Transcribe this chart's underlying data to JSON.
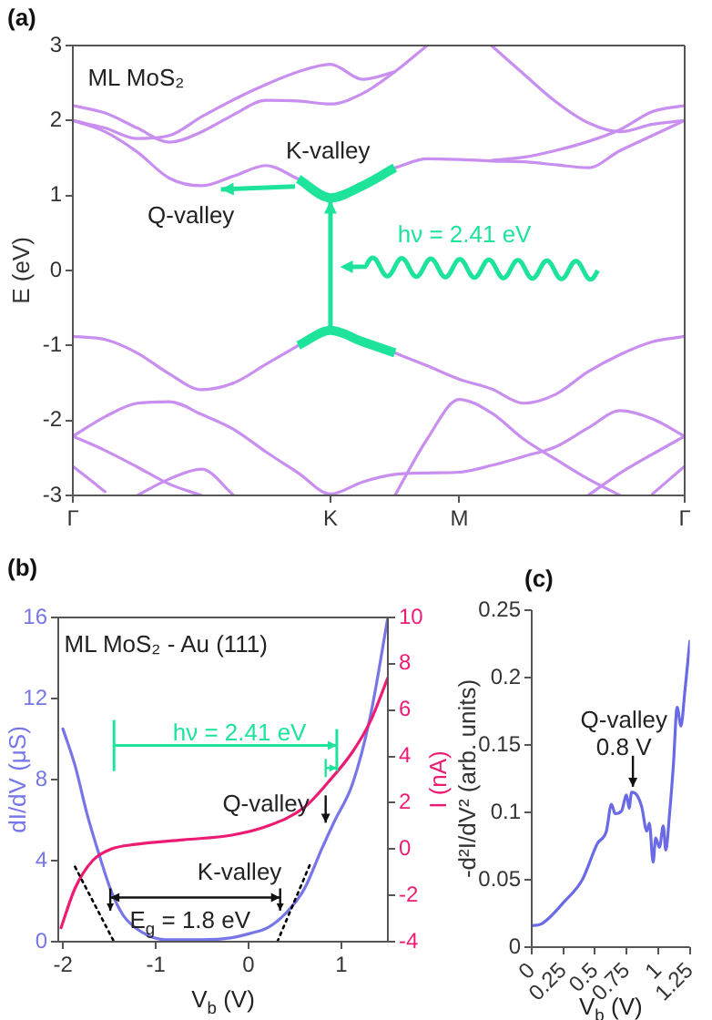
{
  "chart_data": [
    {
      "type": "line",
      "title": "(a)",
      "ylabel": "E (eV)",
      "categories": [
        "Γ",
        null,
        null,
        null,
        null,
        null,
        null,
        null,
        "K",
        null,
        null,
        null,
        "M",
        null,
        null,
        null,
        null,
        null,
        null,
        "Γ"
      ],
      "ylim": [
        -3,
        3
      ],
      "yticks": [
        -3,
        -2,
        -1,
        0,
        1,
        2,
        3
      ],
      "legend": false,
      "marker": "none",
      "annotations": [
        "ML MoS₂",
        {
          "text": "K-valley",
          "x": "K",
          "y": 0.97
        },
        {
          "text": "Q-valley",
          "y": 1.13
        },
        "hν = 2.41 eV"
      ],
      "series": [
        {
          "color": "#c88ef0",
          "values": [
            2.0,
            1.85,
            1.58,
            1.23,
            1.13,
            1.26,
            1.4,
            1.22,
            null,
            null,
            1.37,
            1.49,
            1.48,
            1.46,
            1.45,
            1.41,
            1.37,
            1.6,
            1.8,
            2.0
          ]
        },
        {
          "color": "#c88ef0",
          "values": [
            2.2,
            2.1,
            1.9,
            1.71,
            1.85,
            2.08,
            2.27,
            2.26,
            2.22,
            2.36,
            2.65,
            3.0,
            null,
            null,
            null,
            null,
            null,
            null,
            null,
            null
          ]
        },
        {
          "color": "#c88ef0",
          "values": [
            2.0,
            1.9,
            1.76,
            1.8,
            2.05,
            2.28,
            2.48,
            2.65,
            2.75,
            2.55,
            2.65,
            null,
            null,
            null,
            null,
            null,
            null,
            null,
            null,
            null
          ]
        },
        {
          "color": "#c88ef0",
          "values": [
            null,
            null,
            null,
            null,
            null,
            null,
            null,
            null,
            null,
            null,
            null,
            null,
            null,
            3.0,
            2.62,
            2.25,
            1.97,
            1.85,
            1.95,
            2.0
          ]
        },
        {
          "color": "#c88ef0",
          "values": [
            null,
            null,
            null,
            null,
            null,
            null,
            null,
            null,
            null,
            null,
            null,
            null,
            null,
            1.47,
            1.51,
            1.6,
            1.72,
            1.88,
            2.12,
            2.2
          ]
        },
        {
          "color": "#c88ef0",
          "values": [
            -0.88,
            -0.92,
            -1.1,
            -1.38,
            -1.59,
            -1.5,
            -1.25,
            -1.0,
            null,
            null,
            -1.1,
            -1.27,
            -1.45,
            -1.58,
            -1.77,
            -1.65,
            -1.35,
            -1.12,
            -0.95,
            -0.88
          ]
        },
        {
          "color": "#c88ef0",
          "values": [
            -2.21,
            -1.95,
            -1.77,
            -1.75,
            -1.92,
            -2.12,
            -2.42,
            -2.7,
            -2.98,
            -2.82,
            -2.72,
            -2.7,
            -2.69,
            -2.6,
            -2.48,
            -2.35,
            -2.1,
            -1.87,
            -1.98,
            -2.21
          ]
        },
        {
          "color": "#c88ef0",
          "values": [
            -2.21,
            -2.4,
            -2.62,
            -2.85,
            -3.0,
            null,
            null,
            null,
            null,
            null,
            null,
            null,
            null,
            null,
            null,
            null,
            null,
            null,
            null,
            null
          ]
        },
        {
          "color": "#c88ef0",
          "values": [
            null,
            null,
            null,
            null,
            null,
            null,
            null,
            null,
            null,
            null,
            null,
            null,
            null,
            null,
            null,
            null,
            -3.0,
            -2.7,
            -2.45,
            -2.21
          ]
        },
        {
          "color": "#c88ef0",
          "values": [
            -2.61,
            -2.95,
            null,
            null,
            null,
            null,
            null,
            null,
            null,
            null,
            null,
            null,
            null,
            null,
            null,
            null,
            null,
            null,
            null,
            null
          ]
        },
        {
          "color": "#c88ef0",
          "values": [
            null,
            null,
            null,
            null,
            null,
            null,
            null,
            null,
            null,
            null,
            null,
            null,
            null,
            null,
            null,
            null,
            null,
            null,
            -2.98,
            -2.61
          ]
        },
        {
          "color": "#c88ef0",
          "values": [
            null,
            null,
            -3.0,
            -2.78,
            -2.65,
            -3.0,
            null,
            null,
            null,
            null,
            null,
            null,
            null,
            null,
            null,
            null,
            null,
            null,
            null,
            null
          ]
        },
        {
          "color": "#c88ef0",
          "values": [
            null,
            null,
            null,
            null,
            null,
            null,
            null,
            null,
            null,
            null,
            -3.0,
            -2.25,
            -1.72,
            -1.9,
            -2.25,
            -2.52,
            -2.78,
            -3.0,
            null,
            null
          ]
        },
        {
          "color": "#1ee39b",
          "values": [
            null,
            null,
            null,
            null,
            null,
            null,
            null,
            1.22,
            0.97,
            1.13,
            1.37,
            null,
            null,
            null,
            null,
            null,
            null,
            null,
            null,
            null
          ]
        },
        {
          "color": "#1ee39b",
          "values": [
            null,
            null,
            null,
            null,
            null,
            null,
            null,
            -1.0,
            -0.8,
            -0.95,
            -1.1,
            null,
            null,
            null,
            null,
            null,
            null,
            null,
            null,
            null
          ]
        }
      ]
    },
    {
      "type": "line",
      "title": "(b)",
      "xlabel": "V$_{b}$ (V)",
      "ylabel": "dI/dV (μS)",
      "y2label": "I (nA)",
      "xlim": [
        -2.05,
        1.5
      ],
      "xticks": [
        -2,
        -1,
        0,
        1
      ],
      "ylim": [
        0,
        16
      ],
      "yticks": [
        0,
        4,
        8,
        12,
        16
      ],
      "y2lim": [
        -4,
        10
      ],
      "y2ticks": [
        -4,
        -2,
        0,
        2,
        4,
        6,
        8,
        10
      ],
      "legend": false,
      "marker": "none",
      "annotations": [
        "ML MoS₂ - Au (111)",
        {
          "text": "hν = 2.41 eV",
          "x": 0.95,
          "y": 8.57
        },
        "Q-valley",
        "K-valley",
        "E$_{g}$ = 1.8 eV"
      ],
      "series": [
        {
          "color": "#7676e8",
          "x": [
            -2.0,
            -1.87,
            -1.74,
            -1.61,
            -1.48,
            -1.35,
            -1.16,
            -0.9,
            -0.5,
            -0.18,
            0.01,
            0.21,
            0.4,
            0.6,
            0.79,
            0.92,
            1.12,
            1.31,
            1.5
          ],
          "values": [
            10.5,
            8.7,
            6.3,
            4.3,
            2.5,
            1.3,
            0.5,
            0.1,
            0.1,
            0.2,
            0.4,
            0.7,
            1.4,
            2.6,
            4.6,
            5.9,
            7.8,
            11.1,
            16
          ]
        },
        {
          "color": "#ec1c74",
          "axis": "y2",
          "x": [
            -2.02,
            -1.87,
            -1.68,
            -1.48,
            -1.22,
            -0.7,
            -0.18,
            0.21,
            0.6,
            0.86,
            1.12,
            1.31,
            1.5
          ],
          "values": [
            -3.4,
            -1.7,
            -0.5,
            0.0,
            0.2,
            0.4,
            0.6,
            1.0,
            1.8,
            2.9,
            4.2,
            5.5,
            7.4
          ]
        },
        {
          "color": "#000000",
          "type": "line",
          "line_style": "dotted",
          "x": [
            -1.87,
            -1.45
          ],
          "values": [
            3.7,
            0
          ]
        },
        {
          "color": "#000000",
          "type": "line",
          "line_style": "dotted",
          "x": [
            0.31,
            0.66
          ],
          "values": [
            0,
            3.8
          ]
        }
      ]
    },
    {
      "type": "line",
      "title": "(c)",
      "xlabel": "V$_{b}$ (V)",
      "ylabel": "-d²I/dV² (arb. units)",
      "xlim": [
        0,
        1.25
      ],
      "xticks": [
        0,
        0.25,
        0.5,
        0.75,
        1,
        1.25
      ],
      "ylim": [
        0,
        0.25
      ],
      "yticks": [
        0,
        0.05,
        0.1,
        0.15,
        0.2,
        0.25
      ],
      "legend": false,
      "marker": "none",
      "annotations": [
        "Q-valley\n0.8 V"
      ],
      "series": [
        {
          "color": "#6a6ae6",
          "x": [
            0,
            0.07,
            0.26,
            0.4,
            0.52,
            0.59,
            0.63,
            0.66,
            0.71,
            0.75,
            0.77,
            0.79,
            0.83,
            0.87,
            0.91,
            0.93,
            0.96,
            0.98,
            1.01,
            1.04,
            1.06,
            1.09,
            1.12,
            1.15,
            1.18,
            1.21,
            1.25
          ],
          "values": [
            0.016,
            0.017,
            0.034,
            0.05,
            0.077,
            0.086,
            0.106,
            0.099,
            0.101,
            0.113,
            0.103,
            0.115,
            0.113,
            0.104,
            0.086,
            0.092,
            0.063,
            0.081,
            0.074,
            0.09,
            0.072,
            0.099,
            0.135,
            0.178,
            0.164,
            0.189,
            0.227
          ]
        }
      ]
    }
  ]
}
